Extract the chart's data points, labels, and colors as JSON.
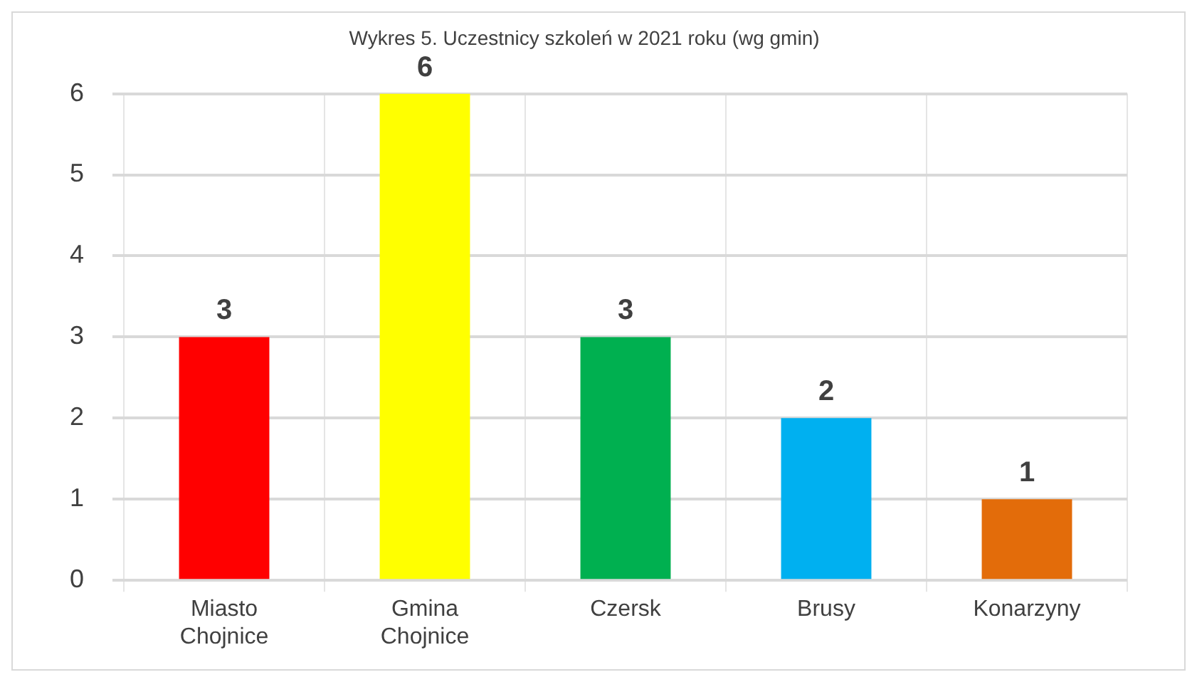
{
  "chart_data": {
    "type": "bar",
    "title": "Wykres 5. Uczestnicy szkoleń w 2021 roku (wg gmin)",
    "categories": [
      "Miasto Chojnice",
      "Gmina Chojnice",
      "Czersk",
      "Brusy",
      "Konarzyny"
    ],
    "values": [
      3,
      6,
      3,
      2,
      1
    ],
    "colors": [
      "#ff0000",
      "#ffff00",
      "#00b050",
      "#00b0f0",
      "#e36c0a"
    ],
    "ylim": [
      0,
      6
    ],
    "yticks": [
      0,
      1,
      2,
      3,
      4,
      5,
      6
    ],
    "grid": true,
    "data_labels": true,
    "legend": false
  }
}
